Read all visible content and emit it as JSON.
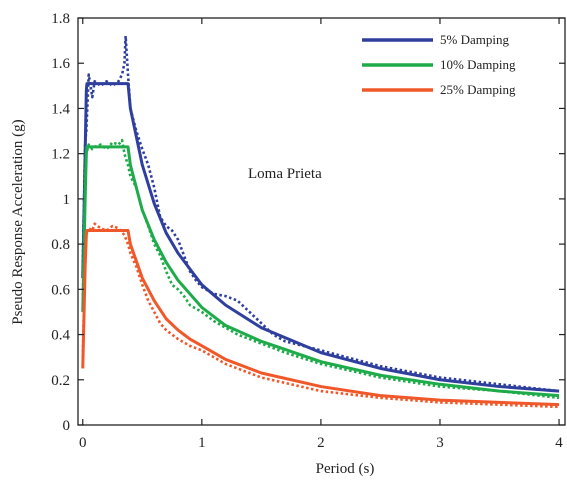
{
  "chart_data": {
    "type": "line",
    "xlabel": "Period (s)",
    "ylabel": "Pseudo Response Acceleration (g)",
    "xlim": [
      -0.04,
      4.05
    ],
    "ylim": [
      0,
      1.8
    ],
    "xticks": [
      {
        "v": 0,
        "label": "0"
      },
      {
        "v": 1,
        "label": "1"
      },
      {
        "v": 2,
        "label": "2"
      },
      {
        "v": 3,
        "label": "3"
      },
      {
        "v": 4,
        "label": "4"
      }
    ],
    "yticks": [
      {
        "v": 0,
        "label": "0"
      },
      {
        "v": 0.2,
        "label": "0.2"
      },
      {
        "v": 0.4,
        "label": "0.4"
      },
      {
        "v": 0.6,
        "label": "0.6"
      },
      {
        "v": 0.8,
        "label": "0.8"
      },
      {
        "v": 1.0,
        "label": "1"
      },
      {
        "v": 1.2,
        "label": "1.2"
      },
      {
        "v": 1.4,
        "label": "1.4"
      },
      {
        "v": 1.6,
        "label": "1.6"
      },
      {
        "v": 1.8,
        "label": "1.8"
      }
    ],
    "annotation": "Loma Prieta",
    "legend_position": "top-right",
    "grid": false,
    "series": [
      {
        "name": "5% Damping",
        "color": "#2e3f9e",
        "target": {
          "x": [
            0,
            0.02,
            0.03,
            0.035,
            0.05,
            0.38,
            0.4,
            0.5,
            0.6,
            0.7,
            0.8,
            0.9,
            1.0,
            1.2,
            1.5,
            2.0,
            2.5,
            3.0,
            3.5,
            4.0
          ],
          "y": [
            0.65,
            1.2,
            1.48,
            1.51,
            1.51,
            1.51,
            1.4,
            1.15,
            0.98,
            0.85,
            0.76,
            0.69,
            0.62,
            0.53,
            0.43,
            0.32,
            0.25,
            0.2,
            0.17,
            0.15
          ]
        },
        "match": {
          "x": [
            0,
            0.02,
            0.03,
            0.05,
            0.08,
            0.1,
            0.15,
            0.2,
            0.25,
            0.3,
            0.33,
            0.35,
            0.36,
            0.38,
            0.4,
            0.45,
            0.5,
            0.55,
            0.6,
            0.65,
            0.7,
            0.75,
            0.8,
            0.85,
            0.9,
            0.95,
            1.0,
            1.1,
            1.2,
            1.3,
            1.4,
            1.5,
            1.6,
            1.7,
            2.0,
            2.5,
            3.0,
            3.5,
            4.0
          ],
          "y": [
            0.7,
            1.25,
            1.3,
            1.55,
            1.45,
            1.52,
            1.5,
            1.52,
            1.5,
            1.52,
            1.55,
            1.6,
            1.72,
            1.55,
            1.4,
            1.3,
            1.22,
            1.15,
            1.05,
            0.92,
            0.88,
            0.86,
            0.82,
            0.75,
            0.68,
            0.64,
            0.61,
            0.58,
            0.57,
            0.55,
            0.5,
            0.45,
            0.4,
            0.37,
            0.33,
            0.26,
            0.21,
            0.18,
            0.15
          ]
        }
      },
      {
        "name": "10% Damping",
        "color": "#1fab4a",
        "target": {
          "x": [
            0,
            0.02,
            0.03,
            0.035,
            0.05,
            0.38,
            0.4,
            0.5,
            0.6,
            0.7,
            0.8,
            0.9,
            1.0,
            1.2,
            1.5,
            2.0,
            2.5,
            3.0,
            3.5,
            4.0
          ],
          "y": [
            0.5,
            1.0,
            1.2,
            1.23,
            1.23,
            1.23,
            1.15,
            0.95,
            0.82,
            0.72,
            0.64,
            0.58,
            0.52,
            0.44,
            0.37,
            0.28,
            0.22,
            0.18,
            0.15,
            0.13
          ]
        },
        "match": {
          "x": [
            0,
            0.02,
            0.03,
            0.05,
            0.08,
            0.1,
            0.15,
            0.2,
            0.25,
            0.3,
            0.33,
            0.35,
            0.38,
            0.4,
            0.45,
            0.5,
            0.55,
            0.6,
            0.65,
            0.7,
            0.75,
            0.8,
            0.85,
            0.9,
            1.0,
            1.1,
            1.2,
            1.3,
            1.5,
            1.7,
            2.0,
            2.5,
            3.0,
            3.5,
            4.0
          ],
          "y": [
            0.55,
            1.1,
            1.2,
            1.24,
            1.22,
            1.23,
            1.24,
            1.22,
            1.25,
            1.24,
            1.26,
            1.2,
            1.15,
            1.1,
            1.05,
            0.95,
            0.88,
            0.8,
            0.75,
            0.68,
            0.62,
            0.6,
            0.57,
            0.53,
            0.5,
            0.46,
            0.43,
            0.4,
            0.36,
            0.32,
            0.27,
            0.21,
            0.17,
            0.15,
            0.12
          ]
        }
      },
      {
        "name": "25% Damping",
        "color": "#f0582a",
        "target": {
          "x": [
            0,
            0.02,
            0.03,
            0.035,
            0.05,
            0.38,
            0.4,
            0.5,
            0.6,
            0.7,
            0.8,
            0.9,
            1.0,
            1.2,
            1.5,
            2.0,
            2.5,
            3.0,
            3.5,
            4.0
          ],
          "y": [
            0.25,
            0.7,
            0.84,
            0.86,
            0.86,
            0.86,
            0.8,
            0.65,
            0.55,
            0.47,
            0.42,
            0.38,
            0.35,
            0.29,
            0.23,
            0.17,
            0.13,
            0.11,
            0.1,
            0.09
          ]
        },
        "match": {
          "x": [
            0,
            0.02,
            0.03,
            0.05,
            0.08,
            0.1,
            0.15,
            0.2,
            0.25,
            0.3,
            0.35,
            0.38,
            0.4,
            0.45,
            0.5,
            0.55,
            0.6,
            0.65,
            0.7,
            0.8,
            0.9,
            1.0,
            1.2,
            1.5,
            2.0,
            2.5,
            3.0,
            3.5,
            4.0
          ],
          "y": [
            0.3,
            0.75,
            0.85,
            0.87,
            0.86,
            0.89,
            0.87,
            0.86,
            0.88,
            0.87,
            0.84,
            0.8,
            0.76,
            0.7,
            0.62,
            0.55,
            0.5,
            0.45,
            0.42,
            0.38,
            0.35,
            0.33,
            0.27,
            0.21,
            0.15,
            0.12,
            0.1,
            0.09,
            0.08
          ]
        }
      }
    ]
  }
}
